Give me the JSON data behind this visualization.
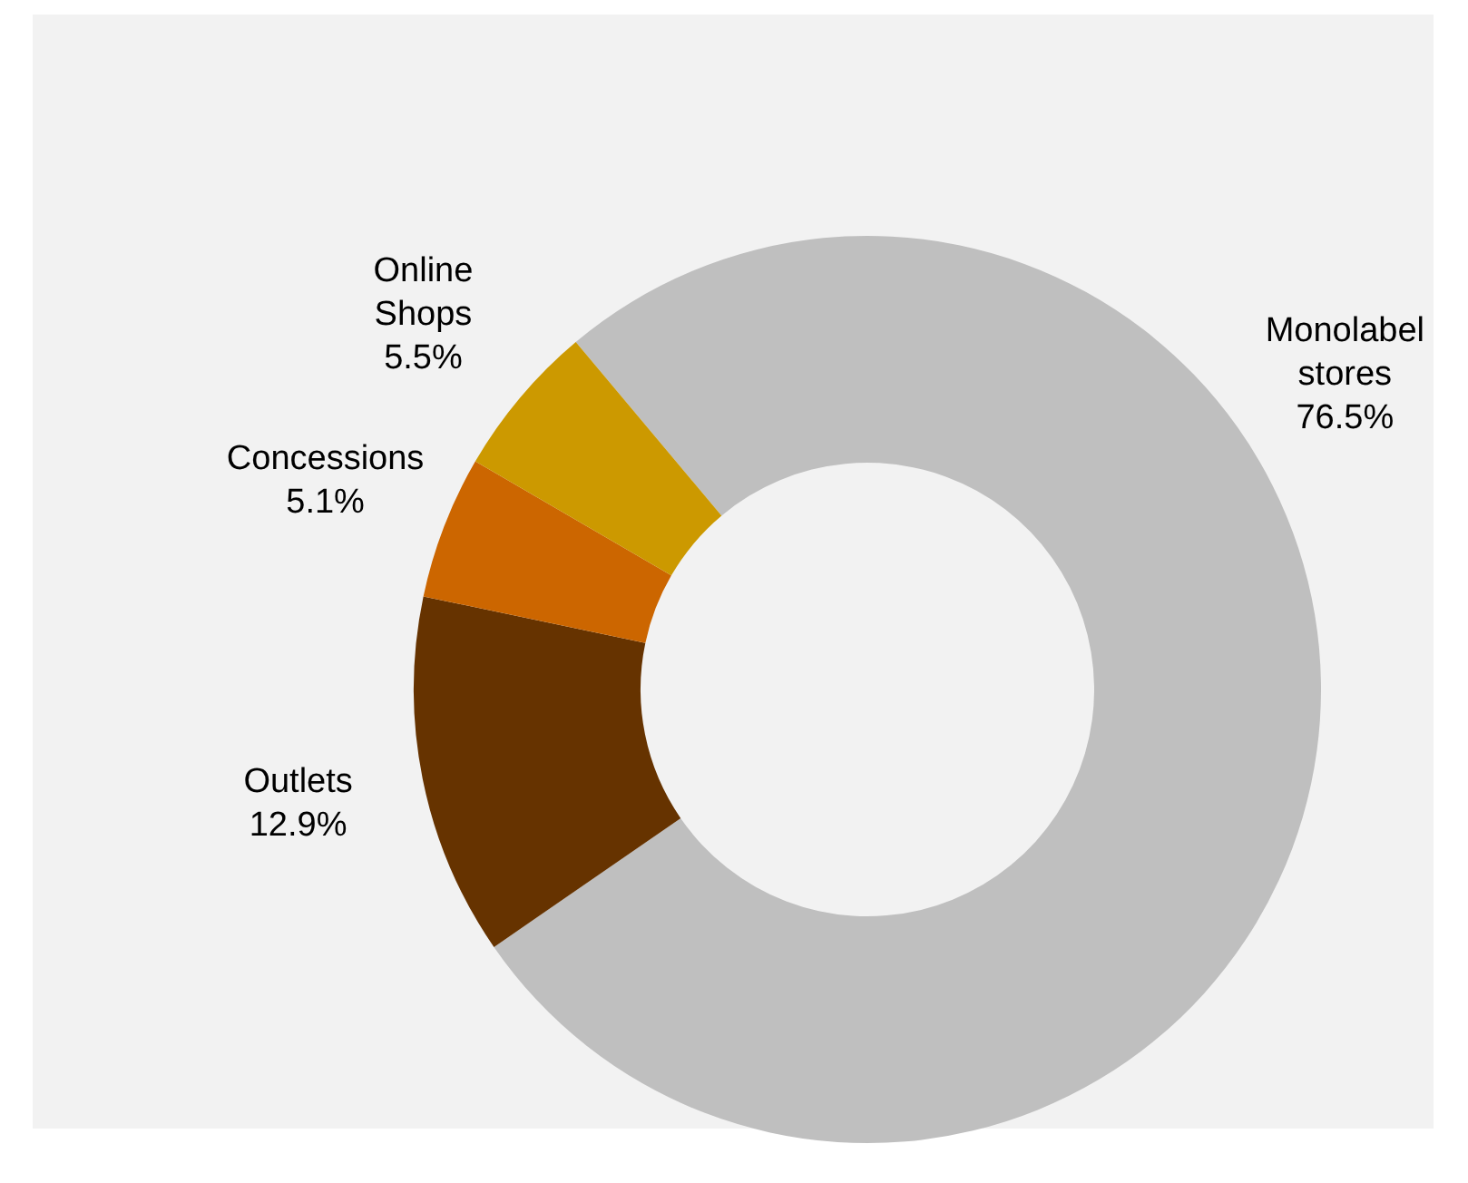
{
  "chart_data": {
    "type": "donut",
    "categories": [
      "Monolabel stores",
      "Outlets",
      "Concessions",
      "Online Shops"
    ],
    "values": [
      76.5,
      12.9,
      5.1,
      5.5
    ],
    "colors": [
      "#bfbfbf",
      "#663300",
      "#cc6600",
      "#cc9900"
    ],
    "value_labels": [
      "76.5%",
      "12.9%",
      "5.1%",
      "5.5%"
    ],
    "legend": false
  }
}
